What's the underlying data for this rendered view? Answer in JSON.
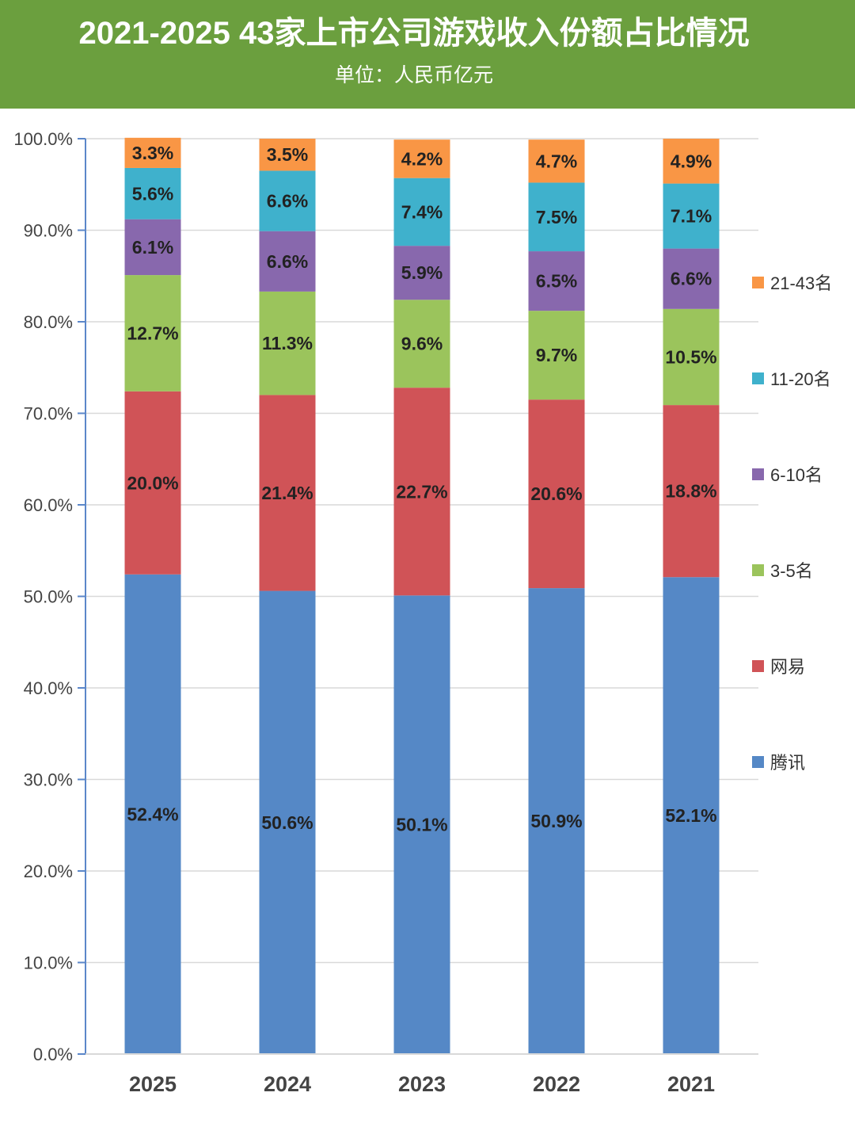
{
  "header": {
    "title": "2021-2025 43家上市公司游戏收入份额占比情况",
    "subtitle": "单位：人民币亿元"
  },
  "colors": {
    "header_bg": "#6b9f3e",
    "grid": "#d9d9d9",
    "axis": "#5b87c9"
  },
  "chart_data": {
    "type": "bar",
    "stacked": true,
    "categories": [
      "2025",
      "2024",
      "2023",
      "2022",
      "2021"
    ],
    "series": [
      {
        "name": "腾讯",
        "color": "#5588c6",
        "values": [
          52.4,
          50.6,
          50.1,
          50.9,
          52.1
        ],
        "labels": [
          "52.4%",
          "50.6%",
          "50.1%",
          "50.9%",
          "52.1%"
        ]
      },
      {
        "name": "网易",
        "color": "#d05357",
        "values": [
          20.0,
          21.4,
          22.7,
          20.6,
          18.8
        ],
        "labels": [
          "20.0%",
          "21.4%",
          "22.7%",
          "20.6%",
          "18.8%"
        ]
      },
      {
        "name": "3-5名",
        "color": "#9bc45c",
        "values": [
          12.7,
          11.3,
          9.6,
          9.7,
          10.5
        ],
        "labels": [
          "12.7%",
          "11.3%",
          "9.6%",
          "9.7%",
          "10.5%"
        ]
      },
      {
        "name": "6-10名",
        "color": "#8868ad",
        "values": [
          6.1,
          6.6,
          5.9,
          6.5,
          6.6
        ],
        "labels": [
          "6.1%",
          "6.6%",
          "5.9%",
          "6.5%",
          "6.6%"
        ]
      },
      {
        "name": "11-20名",
        "color": "#3fb1cc",
        "values": [
          5.6,
          6.6,
          7.4,
          7.5,
          7.1
        ],
        "labels": [
          "5.6%",
          "6.6%",
          "7.4%",
          "7.5%",
          "7.1%"
        ]
      },
      {
        "name": "21-43名",
        "color": "#f99645",
        "values": [
          3.3,
          3.5,
          4.2,
          4.7,
          4.9
        ],
        "labels": [
          "3.3%",
          "3.5%",
          "4.2%",
          "4.7%",
          "4.9%"
        ]
      }
    ],
    "ylim": [
      0,
      100
    ],
    "yticks": [
      "0.0%",
      "10.0%",
      "20.0%",
      "30.0%",
      "40.0%",
      "50.0%",
      "60.0%",
      "70.0%",
      "80.0%",
      "90.0%",
      "100.0%"
    ],
    "grid": true,
    "legend_position": "right"
  }
}
